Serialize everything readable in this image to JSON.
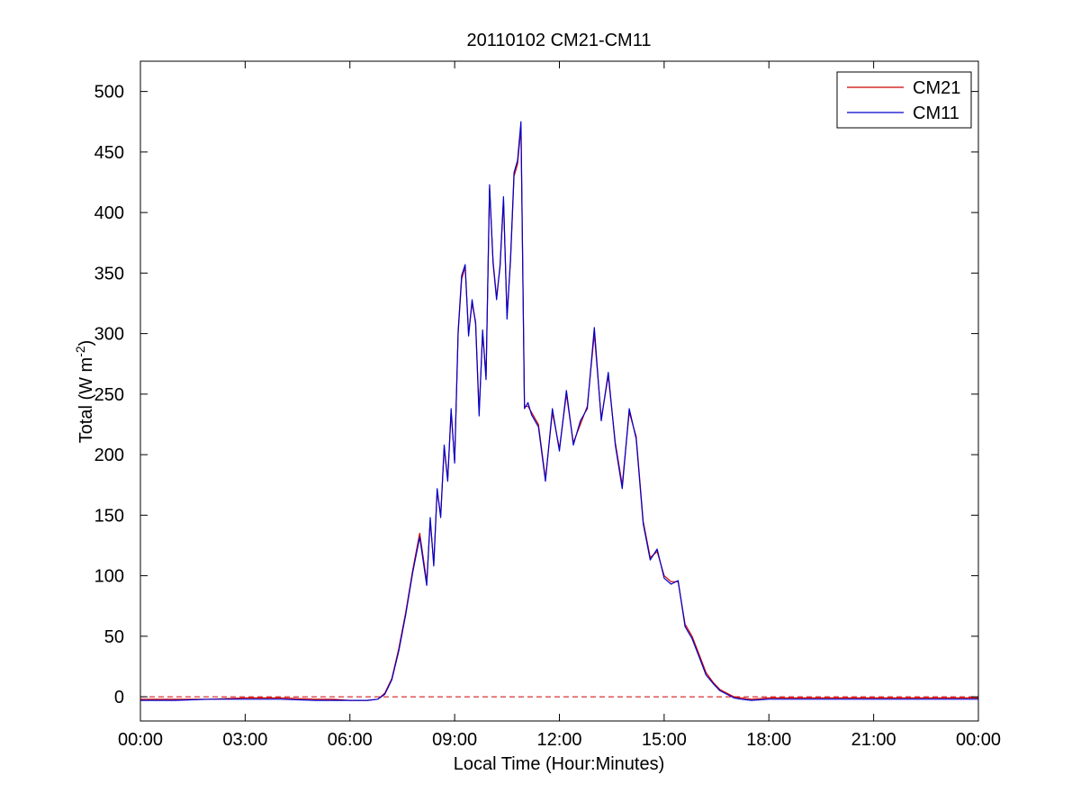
{
  "chart_data": {
    "type": "line",
    "title": "20110102 CM21-CM11",
    "xlabel": "Local Time (Hour:Minutes)",
    "ylabel": {
      "prefix": "Total (W m",
      "superscript": "-2",
      "suffix": ")"
    },
    "xlim_hours": [
      0,
      24
    ],
    "ylim": [
      -20,
      525
    ],
    "x_ticks": [
      {
        "hour": 0,
        "label": "00:00"
      },
      {
        "hour": 3,
        "label": "03:00"
      },
      {
        "hour": 6,
        "label": "06:00"
      },
      {
        "hour": 9,
        "label": "09:00"
      },
      {
        "hour": 12,
        "label": "12:00"
      },
      {
        "hour": 15,
        "label": "15:00"
      },
      {
        "hour": 18,
        "label": "18:00"
      },
      {
        "hour": 21,
        "label": "21:00"
      },
      {
        "hour": 24,
        "label": "00:00"
      }
    ],
    "y_ticks": [
      0,
      50,
      100,
      150,
      200,
      250,
      300,
      350,
      400,
      450,
      500
    ],
    "reference_line": {
      "y": 0,
      "style": "dashed",
      "color": "#cc0000"
    },
    "legend": {
      "position": "top-right",
      "entries": [
        {
          "label": "CM21",
          "color": "#cc0000"
        },
        {
          "label": "CM11",
          "color": "#0000cc"
        }
      ]
    },
    "series": [
      {
        "name": "CM21",
        "color": "#cc0000",
        "x_hours": [
          0,
          1,
          2,
          3,
          4,
          5,
          5.5,
          6,
          6.5,
          6.8,
          7.0,
          7.2,
          7.4,
          7.6,
          7.8,
          8.0,
          8.2,
          8.3,
          8.4,
          8.5,
          8.6,
          8.7,
          8.8,
          8.9,
          9.0,
          9.1,
          9.2,
          9.3,
          9.4,
          9.5,
          9.6,
          9.7,
          9.8,
          9.9,
          10.0,
          10.1,
          10.2,
          10.3,
          10.4,
          10.5,
          10.6,
          10.7,
          10.8,
          10.9,
          11.0,
          11.1,
          11.2,
          11.4,
          11.6,
          11.8,
          12.0,
          12.2,
          12.4,
          12.6,
          12.8,
          13.0,
          13.2,
          13.4,
          13.6,
          13.8,
          14.0,
          14.2,
          14.4,
          14.6,
          14.8,
          15.0,
          15.2,
          15.4,
          15.6,
          15.8,
          16.0,
          16.2,
          16.4,
          16.6,
          16.8,
          17.0,
          17.2,
          17.5,
          18,
          19,
          20,
          21,
          22,
          23,
          24
        ],
        "values": [
          -2,
          -2,
          -2,
          -1,
          -1,
          -2,
          -2,
          -3,
          -3,
          -2,
          3,
          15,
          40,
          70,
          105,
          135,
          95,
          145,
          110,
          170,
          150,
          205,
          180,
          235,
          195,
          300,
          345,
          355,
          300,
          325,
          310,
          235,
          300,
          265,
          420,
          360,
          330,
          355,
          410,
          315,
          360,
          430,
          440,
          470,
          240,
          240,
          235,
          225,
          180,
          235,
          205,
          250,
          210,
          225,
          240,
          300,
          230,
          265,
          210,
          175,
          235,
          215,
          145,
          115,
          120,
          100,
          95,
          95,
          60,
          50,
          35,
          20,
          12,
          6,
          3,
          0,
          -1,
          -2,
          -1,
          -1,
          -1,
          -1,
          -1,
          -1,
          -1
        ]
      },
      {
        "name": "CM11",
        "color": "#0000cc",
        "x_hours": [
          0,
          1,
          2,
          3,
          4,
          5,
          5.5,
          6,
          6.5,
          6.8,
          7.0,
          7.2,
          7.4,
          7.6,
          7.8,
          8.0,
          8.2,
          8.3,
          8.4,
          8.5,
          8.6,
          8.7,
          8.8,
          8.9,
          9.0,
          9.1,
          9.2,
          9.3,
          9.4,
          9.5,
          9.6,
          9.7,
          9.8,
          9.9,
          10.0,
          10.1,
          10.2,
          10.3,
          10.4,
          10.5,
          10.6,
          10.7,
          10.8,
          10.9,
          11.0,
          11.1,
          11.2,
          11.4,
          11.6,
          11.8,
          12.0,
          12.2,
          12.4,
          12.6,
          12.8,
          13.0,
          13.2,
          13.4,
          13.6,
          13.8,
          14.0,
          14.2,
          14.4,
          14.6,
          14.8,
          15.0,
          15.2,
          15.4,
          15.6,
          15.8,
          16.0,
          16.2,
          16.4,
          16.6,
          16.8,
          17.0,
          17.2,
          17.5,
          18,
          19,
          20,
          21,
          22,
          23,
          24
        ],
        "values": [
          -3,
          -3,
          -2,
          -2,
          -2,
          -3,
          -3,
          -3,
          -3,
          -2,
          2,
          14,
          38,
          68,
          103,
          132,
          92,
          148,
          108,
          172,
          148,
          208,
          178,
          238,
          193,
          302,
          348,
          357,
          298,
          328,
          308,
          232,
          303,
          262,
          423,
          358,
          328,
          357,
          413,
          312,
          362,
          433,
          443,
          475,
          238,
          243,
          233,
          223,
          178,
          238,
          203,
          253,
          208,
          228,
          238,
          305,
          228,
          268,
          208,
          172,
          238,
          213,
          143,
          113,
          122,
          98,
          93,
          96,
          58,
          48,
          33,
          18,
          11,
          5,
          2,
          -1,
          -2,
          -3,
          -2,
          -2,
          -2,
          -2,
          -2,
          -2,
          -2
        ]
      }
    ]
  }
}
